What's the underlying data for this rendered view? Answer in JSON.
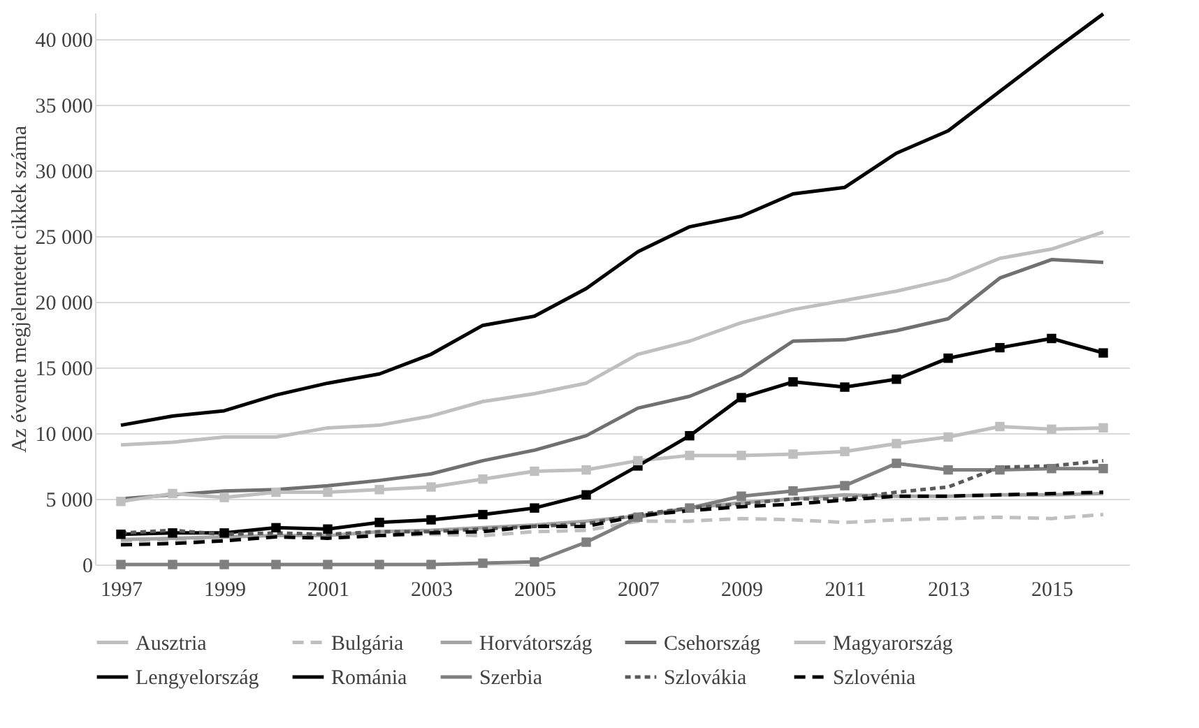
{
  "chart_data": {
    "type": "line",
    "ylabel": "Az évente megjelentetett cikkek száma",
    "x": [
      1997,
      1998,
      1999,
      2000,
      2001,
      2002,
      2003,
      2004,
      2005,
      2006,
      2007,
      2008,
      2009,
      2010,
      2011,
      2012,
      2013,
      2014,
      2015,
      2016
    ],
    "xlim": [
      1996.5,
      2016.5
    ],
    "xticks": [
      1997,
      1999,
      2001,
      2003,
      2005,
      2007,
      2009,
      2011,
      2013,
      2015
    ],
    "ylim": [
      0,
      42000
    ],
    "yticks": [
      {
        "value": 0,
        "label": "0"
      },
      {
        "value": 5000,
        "label": "5 000"
      },
      {
        "value": 10000,
        "label": "10 000"
      },
      {
        "value": 15000,
        "label": "15 000"
      },
      {
        "value": 20000,
        "label": "20 000"
      },
      {
        "value": 25000,
        "label": "25 000"
      },
      {
        "value": 30000,
        "label": "30 000"
      },
      {
        "value": 35000,
        "label": "35 000"
      },
      {
        "value": 40000,
        "label": "40 000"
      }
    ],
    "grid": "y",
    "legend": "bottom",
    "series": [
      {
        "name": "Ausztria",
        "color": "#bfbfbf",
        "line_style": "solid",
        "marker": "none",
        "values": [
          9100,
          9300,
          9700,
          9700,
          10400,
          10600,
          11300,
          12400,
          13000,
          13800,
          16000,
          17000,
          18400,
          19400,
          20100,
          20800,
          21700,
          23300,
          24000,
          25300
        ]
      },
      {
        "name": "Bulgária",
        "color": "#bfbfbf",
        "line_style": "dashed",
        "marker": "none",
        "values": [
          1800,
          1900,
          2000,
          2200,
          2200,
          2200,
          2300,
          2200,
          2500,
          2600,
          3300,
          3300,
          3500,
          3400,
          3200,
          3400,
          3500,
          3600,
          3500,
          3800
        ]
      },
      {
        "name": "Horvátország",
        "color": "#a5a5a5",
        "line_style": "solid",
        "marker": "none",
        "values": [
          1900,
          2000,
          2100,
          2200,
          2200,
          2500,
          2600,
          2800,
          3000,
          3300,
          3700,
          4300,
          4700,
          5000,
          5300,
          5200,
          5200,
          5300,
          5300,
          5400
        ]
      },
      {
        "name": "Csehország",
        "color": "#707070",
        "line_style": "solid",
        "marker": "none",
        "values": [
          5000,
          5300,
          5600,
          5700,
          6000,
          6400,
          6900,
          7900,
          8700,
          9800,
          11900,
          12800,
          14400,
          17000,
          17100,
          17800,
          18700,
          21800,
          23200,
          23000
        ]
      },
      {
        "name": "Magyarország",
        "color": "#bfbfbf",
        "line_style": "solid",
        "marker": "square",
        "values": [
          4800,
          5400,
          5100,
          5500,
          5500,
          5700,
          5900,
          6500,
          7100,
          7200,
          7900,
          8300,
          8300,
          8400,
          8600,
          9200,
          9700,
          10500,
          10300,
          10400
        ]
      },
      {
        "name": "Lengyelország",
        "color": "#000000",
        "line_style": "solid",
        "marker": "none",
        "values": [
          10600,
          11300,
          11700,
          12900,
          13800,
          14500,
          16000,
          18200,
          18900,
          21000,
          23800,
          25700,
          26500,
          28200,
          28700,
          31300,
          33000,
          36000,
          39000,
          41900
        ]
      },
      {
        "name": "Románia",
        "color": "#000000",
        "line_style": "solid",
        "marker": "square",
        "values": [
          2300,
          2400,
          2400,
          2800,
          2700,
          3200,
          3400,
          3800,
          4300,
          5300,
          7500,
          9800,
          12700,
          13900,
          13500,
          14100,
          15700,
          16500,
          17200,
          16100
        ]
      },
      {
        "name": "Szerbia",
        "color": "#7f7f7f",
        "line_style": "solid",
        "marker": "square",
        "values": [
          0,
          0,
          0,
          0,
          0,
          0,
          0,
          100,
          200,
          1700,
          3600,
          4300,
          5200,
          5600,
          6000,
          7700,
          7200,
          7200,
          7300,
          7300
        ]
      },
      {
        "name": "Szlovákia",
        "color": "#595959",
        "line_style": "dotted",
        "marker": "none",
        "values": [
          2400,
          2600,
          2300,
          2400,
          2300,
          2500,
          2500,
          2700,
          2900,
          3100,
          3800,
          4300,
          4600,
          5000,
          5000,
          5500,
          5900,
          7400,
          7500,
          7900
        ]
      },
      {
        "name": "Szlovénia",
        "color": "#000000",
        "line_style": "dashed",
        "marker": "none",
        "values": [
          1500,
          1600,
          1800,
          2100,
          2000,
          2200,
          2400,
          2500,
          2900,
          2900,
          3700,
          4100,
          4400,
          4600,
          4900,
          5200,
          5200,
          5300,
          5400,
          5500
        ]
      }
    ]
  }
}
